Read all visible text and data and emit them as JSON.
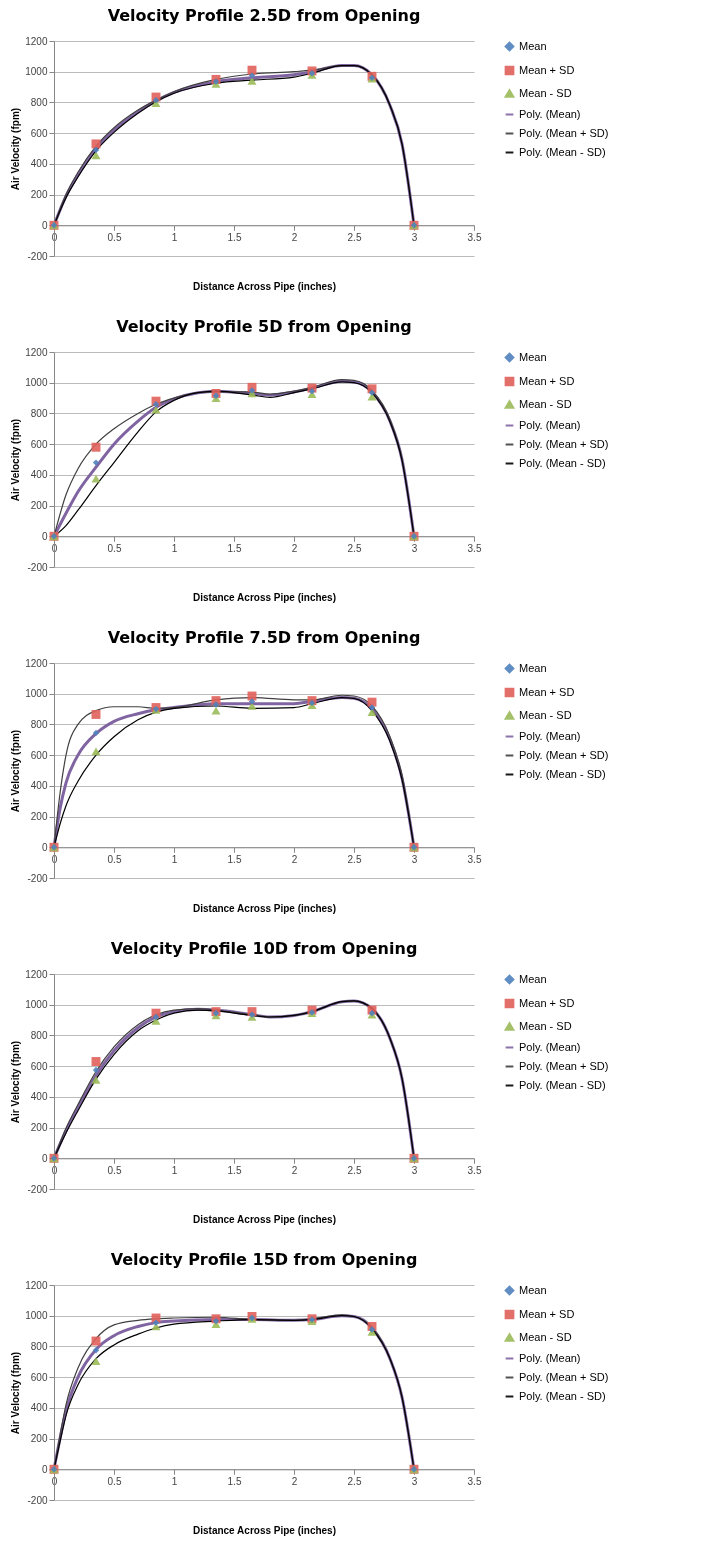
{
  "chart_data": [
    {
      "type": "scatter",
      "title": "Velocity Profile 2.5D from Opening",
      "xlabel": "Distance Across Pipe (inches)",
      "ylabel": "Air Velocity (fpm)",
      "xlim": [
        0,
        3.5
      ],
      "xticks": [
        0,
        0.5,
        1,
        1.5,
        2,
        2.5,
        3,
        3.5
      ],
      "ylim": [
        -200,
        1200
      ],
      "yticks": [
        -200,
        0,
        200,
        400,
        600,
        800,
        1000,
        1200
      ],
      "grid": "y",
      "legend": "right",
      "x": [
        0,
        0.35,
        0.85,
        1.35,
        1.65,
        2.15,
        2.65,
        3
      ],
      "series": [
        {
          "name": "Mean",
          "color": "#4f81bd",
          "marker": "diamond",
          "values": [
            0,
            490,
            815,
            935,
            975,
            990,
            960,
            0
          ]
        },
        {
          "name": "Mean + SD",
          "color": "#e0605a",
          "marker": "square",
          "values": [
            0,
            530,
            835,
            950,
            1010,
            1005,
            970,
            0
          ]
        },
        {
          "name": "Mean - SD",
          "color": "#9bbb59",
          "marker": "triangle",
          "values": [
            0,
            455,
            795,
            920,
            940,
            980,
            955,
            0
          ]
        },
        {
          "name": "Poly. (Mean)",
          "type": "line",
          "color": "#8064a2",
          "marker": "none",
          "x": [
            0,
            0.1,
            0.2,
            0.35,
            0.5,
            0.7,
            0.85,
            1,
            1.35,
            1.65,
            2,
            2.15,
            2.4,
            2.5,
            2.65,
            2.8,
            2.9,
            3
          ],
          "values": [
            0,
            190,
            330,
            500,
            620,
            740,
            810,
            865,
            935,
            960,
            980,
            1000,
            1040,
            1040,
            980,
            780,
            530,
            0
          ]
        },
        {
          "name": "Poly. (Mean + SD)",
          "type": "line",
          "color": "#404040",
          "marker": "none",
          "x": [
            0,
            0.1,
            0.2,
            0.35,
            0.5,
            0.7,
            0.85,
            1,
            1.35,
            1.65,
            2,
            2.15,
            2.4,
            2.5,
            2.65,
            2.8,
            2.9,
            3
          ],
          "values": [
            0,
            200,
            345,
            515,
            635,
            750,
            815,
            870,
            950,
            985,
            1000,
            1010,
            1040,
            1040,
            980,
            780,
            530,
            0
          ]
        },
        {
          "name": "Poly. (Mean - SD)",
          "type": "line",
          "color": "#000000",
          "marker": "none",
          "x": [
            0,
            0.1,
            0.2,
            0.35,
            0.5,
            0.7,
            0.85,
            1,
            1.35,
            1.65,
            2,
            2.15,
            2.4,
            2.5,
            2.65,
            2.8,
            2.9,
            3
          ],
          "values": [
            0,
            180,
            315,
            485,
            605,
            730,
            805,
            860,
            925,
            945,
            965,
            990,
            1040,
            1040,
            980,
            780,
            530,
            0
          ]
        }
      ]
    },
    {
      "type": "scatter",
      "title": "Velocity Profile 5D from Opening",
      "xlabel": "Distance Across Pipe (inches)",
      "ylabel": "Air Velocity (fpm)",
      "xlim": [
        0,
        3.5
      ],
      "xticks": [
        0,
        0.5,
        1,
        1.5,
        2,
        2.5,
        3,
        3.5
      ],
      "ylim": [
        -200,
        1200
      ],
      "yticks": [
        -200,
        0,
        200,
        400,
        600,
        800,
        1000,
        1200
      ],
      "grid": "y",
      "legend": "right",
      "x": [
        0,
        0.35,
        0.85,
        1.35,
        1.65,
        2.15,
        2.65,
        3
      ],
      "series": [
        {
          "name": "Mean",
          "color": "#4f81bd",
          "marker": "diamond",
          "values": [
            0,
            480,
            860,
            915,
            950,
            945,
            935,
            0
          ]
        },
        {
          "name": "Mean + SD",
          "color": "#e0605a",
          "marker": "square",
          "values": [
            0,
            580,
            880,
            930,
            970,
            965,
            960,
            0
          ]
        },
        {
          "name": "Mean - SD",
          "color": "#9bbb59",
          "marker": "triangle",
          "values": [
            0,
            375,
            825,
            900,
            930,
            925,
            910,
            0
          ]
        },
        {
          "name": "Poly. (Mean)",
          "type": "line",
          "color": "#8064a2",
          "marker": "none",
          "x": [
            0,
            0.1,
            0.2,
            0.35,
            0.5,
            0.7,
            0.85,
            1,
            1.2,
            1.35,
            1.65,
            1.8,
            2,
            2.15,
            2.4,
            2.5,
            2.65,
            2.8,
            2.9,
            3
          ],
          "values": [
            0,
            150,
            290,
            450,
            600,
            750,
            840,
            895,
            935,
            945,
            930,
            920,
            940,
            965,
            1010,
            1005,
            940,
            750,
            500,
            0
          ]
        },
        {
          "name": "Poly. (Mean + SD)",
          "type": "line",
          "color": "#404040",
          "marker": "none",
          "x": [
            0,
            0.1,
            0.2,
            0.35,
            0.5,
            0.7,
            0.85,
            1,
            1.2,
            1.35,
            1.65,
            1.8,
            2,
            2.15,
            2.4,
            2.5,
            2.65,
            2.8,
            2.9,
            3
          ],
          "values": [
            0,
            270,
            440,
            600,
            700,
            800,
            860,
            900,
            935,
            940,
            940,
            925,
            945,
            970,
            1020,
            1015,
            950,
            760,
            505,
            0
          ]
        },
        {
          "name": "Poly. (Mean - SD)",
          "type": "line",
          "color": "#000000",
          "marker": "none",
          "x": [
            0,
            0.1,
            0.2,
            0.35,
            0.5,
            0.7,
            0.85,
            1,
            1.2,
            1.35,
            1.65,
            1.8,
            2,
            2.15,
            2.4,
            2.5,
            2.65,
            2.8,
            2.9,
            3
          ],
          "values": [
            0,
            70,
            170,
            330,
            480,
            680,
            810,
            885,
            935,
            945,
            920,
            905,
            935,
            960,
            1005,
            1000,
            935,
            745,
            495,
            0
          ]
        }
      ]
    },
    {
      "type": "scatter",
      "title": "Velocity Profile 7.5D from Opening",
      "xlabel": "Distance Across Pipe (inches)",
      "ylabel": "Air Velocity (fpm)",
      "xlim": [
        0,
        3.5
      ],
      "xticks": [
        0,
        0.5,
        1,
        1.5,
        2,
        2.5,
        3,
        3.5
      ],
      "ylim": [
        -200,
        1200
      ],
      "yticks": [
        -200,
        0,
        200,
        400,
        600,
        800,
        1000,
        1200
      ],
      "grid": "y",
      "legend": "right",
      "x": [
        0,
        0.35,
        0.85,
        1.35,
        1.65,
        2.15,
        2.65,
        3
      ],
      "series": [
        {
          "name": "Mean",
          "color": "#4f81bd",
          "marker": "diamond",
          "values": [
            0,
            745,
            900,
            930,
            950,
            940,
            910,
            0
          ]
        },
        {
          "name": "Mean + SD",
          "color": "#e0605a",
          "marker": "square",
          "values": [
            0,
            865,
            910,
            955,
            985,
            955,
            945,
            0
          ]
        },
        {
          "name": "Mean - SD",
          "color": "#9bbb59",
          "marker": "triangle",
          "values": [
            0,
            625,
            895,
            890,
            920,
            925,
            880,
            0
          ]
        },
        {
          "name": "Poly. (Mean)",
          "type": "line",
          "color": "#8064a2",
          "marker": "none",
          "x": [
            0,
            0.05,
            0.1,
            0.2,
            0.35,
            0.5,
            0.7,
            0.85,
            1,
            1.35,
            1.65,
            2,
            2.15,
            2.4,
            2.5,
            2.65,
            2.8,
            2.9,
            3
          ],
          "values": [
            0,
            250,
            420,
            600,
            740,
            820,
            870,
            895,
            910,
            935,
            935,
            935,
            950,
            975,
            970,
            900,
            700,
            450,
            0
          ]
        },
        {
          "name": "Poly. (Mean + SD)",
          "type": "line",
          "color": "#404040",
          "marker": "none",
          "x": [
            0,
            0.05,
            0.1,
            0.2,
            0.35,
            0.5,
            0.7,
            0.85,
            1,
            1.35,
            1.65,
            2,
            2.15,
            2.4,
            2.5,
            2.65,
            2.8,
            2.9,
            3
          ],
          "values": [
            0,
            350,
            600,
            800,
            890,
            915,
            915,
            905,
            910,
            960,
            975,
            960,
            960,
            990,
            985,
            920,
            720,
            470,
            0
          ]
        },
        {
          "name": "Poly. (Mean - SD)",
          "type": "line",
          "color": "#000000",
          "marker": "none",
          "x": [
            0,
            0.05,
            0.1,
            0.2,
            0.35,
            0.5,
            0.7,
            0.85,
            1,
            1.35,
            1.65,
            2,
            2.15,
            2.4,
            2.5,
            2.65,
            2.8,
            2.9,
            3
          ],
          "values": [
            0,
            150,
            270,
            430,
            600,
            720,
            830,
            880,
            905,
            920,
            905,
            910,
            935,
            975,
            970,
            890,
            690,
            440,
            0
          ]
        }
      ]
    },
    {
      "type": "scatter",
      "title": "Velocity Profile 10D from Opening",
      "xlabel": "Distance Across Pipe (inches)",
      "ylabel": "Air Velocity (fpm)",
      "xlim": [
        0,
        3.5
      ],
      "xticks": [
        0,
        0.5,
        1,
        1.5,
        2,
        2.5,
        3,
        3.5
      ],
      "ylim": [
        -200,
        1200
      ],
      "yticks": [
        -200,
        0,
        200,
        400,
        600,
        800,
        1000,
        1200
      ],
      "grid": "y",
      "legend": "right",
      "x": [
        0,
        0.35,
        0.85,
        1.35,
        1.65,
        2.15,
        2.65,
        3
      ],
      "series": [
        {
          "name": "Mean",
          "color": "#4f81bd",
          "marker": "diamond",
          "values": [
            0,
            575,
            920,
            945,
            935,
            950,
            945,
            0
          ]
        },
        {
          "name": "Mean + SD",
          "color": "#e0605a",
          "marker": "square",
          "values": [
            0,
            630,
            945,
            955,
            955,
            965,
            965,
            0
          ]
        },
        {
          "name": "Mean - SD",
          "color": "#9bbb59",
          "marker": "triangle",
          "values": [
            0,
            510,
            895,
            930,
            920,
            945,
            935,
            0
          ]
        },
        {
          "name": "Poly. (Mean)",
          "type": "line",
          "color": "#8064a2",
          "marker": "none",
          "x": [
            0,
            0.1,
            0.2,
            0.35,
            0.5,
            0.7,
            0.85,
            1,
            1.2,
            1.35,
            1.65,
            1.8,
            2,
            2.15,
            2.4,
            2.5,
            2.65,
            2.8,
            2.9,
            3
          ],
          "values": [
            0,
            180,
            330,
            540,
            700,
            850,
            920,
            955,
            970,
            965,
            935,
            920,
            930,
            955,
            1020,
            1025,
            975,
            780,
            520,
            0
          ]
        },
        {
          "name": "Poly. (Mean + SD)",
          "type": "line",
          "color": "#404040",
          "marker": "none",
          "x": [
            0,
            0.1,
            0.2,
            0.35,
            0.5,
            0.7,
            0.85,
            1,
            1.2,
            1.35,
            1.65,
            1.8,
            2,
            2.15,
            2.4,
            2.5,
            2.65,
            2.8,
            2.9,
            3
          ],
          "values": [
            0,
            195,
            350,
            565,
            725,
            870,
            935,
            965,
            975,
            965,
            935,
            920,
            930,
            955,
            1020,
            1025,
            975,
            780,
            520,
            0
          ]
        },
        {
          "name": "Poly. (Mean - SD)",
          "type": "line",
          "color": "#000000",
          "marker": "none",
          "x": [
            0,
            0.1,
            0.2,
            0.35,
            0.5,
            0.7,
            0.85,
            1,
            1.2,
            1.35,
            1.65,
            1.8,
            2,
            2.15,
            2.4,
            2.5,
            2.65,
            2.8,
            2.9,
            3
          ],
          "values": [
            0,
            165,
            310,
            515,
            675,
            830,
            900,
            945,
            965,
            960,
            930,
            920,
            930,
            955,
            1020,
            1025,
            975,
            780,
            520,
            0
          ]
        }
      ]
    },
    {
      "type": "scatter",
      "title": "Velocity Profile 15D from Opening",
      "xlabel": "Distance Across Pipe (inches)",
      "ylabel": "Air Velocity (fpm)",
      "xlim": [
        0,
        3.5
      ],
      "xticks": [
        0,
        0.5,
        1,
        1.5,
        2,
        2.5,
        3,
        3.5
      ],
      "ylim": [
        -200,
        1200
      ],
      "yticks": [
        -200,
        0,
        200,
        400,
        600,
        800,
        1000,
        1200
      ],
      "grid": "y",
      "legend": "right",
      "x": [
        0,
        0.35,
        0.85,
        1.35,
        1.65,
        2.15,
        2.65,
        3
      ],
      "series": [
        {
          "name": "Mean",
          "color": "#4f81bd",
          "marker": "diamond",
          "values": [
            0,
            775,
            955,
            965,
            985,
            975,
            910,
            0
          ]
        },
        {
          "name": "Mean + SD",
          "color": "#e0605a",
          "marker": "square",
          "values": [
            0,
            835,
            985,
            980,
            995,
            980,
            930,
            0
          ]
        },
        {
          "name": "Mean - SD",
          "color": "#9bbb59",
          "marker": "triangle",
          "values": [
            0,
            705,
            930,
            945,
            980,
            965,
            895,
            0
          ]
        },
        {
          "name": "Poly. (Mean)",
          "type": "line",
          "color": "#8064a2",
          "marker": "none",
          "x": [
            0,
            0.05,
            0.1,
            0.2,
            0.35,
            0.5,
            0.7,
            0.85,
            1,
            1.35,
            1.65,
            2,
            2.15,
            2.4,
            2.5,
            2.65,
            2.8,
            2.9,
            3
          ],
          "values": [
            0,
            200,
            380,
            600,
            780,
            870,
            930,
            955,
            965,
            975,
            975,
            970,
            975,
            1000,
            995,
            920,
            720,
            470,
            0
          ]
        },
        {
          "name": "Poly. (Mean + SD)",
          "type": "line",
          "color": "#404040",
          "marker": "none",
          "x": [
            0,
            0.05,
            0.1,
            0.2,
            0.35,
            0.5,
            0.7,
            0.85,
            1,
            1.35,
            1.65,
            2,
            2.15,
            2.4,
            2.5,
            2.65,
            2.8,
            2.9,
            3
          ],
          "values": [
            0,
            220,
            420,
            660,
            850,
            940,
            970,
            980,
            985,
            990,
            975,
            970,
            980,
            1005,
            995,
            925,
            720,
            470,
            0
          ]
        },
        {
          "name": "Poly. (Mean - SD)",
          "type": "line",
          "color": "#000000",
          "marker": "none",
          "x": [
            0,
            0.05,
            0.1,
            0.2,
            0.35,
            0.5,
            0.7,
            0.85,
            1,
            1.35,
            1.65,
            2,
            2.15,
            2.4,
            2.5,
            2.65,
            2.8,
            2.9,
            3
          ],
          "values": [
            0,
            180,
            350,
            550,
            720,
            810,
            880,
            920,
            945,
            965,
            975,
            970,
            975,
            1000,
            995,
            915,
            720,
            470,
            0
          ]
        }
      ]
    }
  ]
}
